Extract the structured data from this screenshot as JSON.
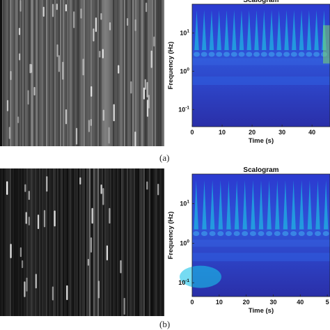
{
  "captions": {
    "a": "(a)",
    "b": "(b)"
  },
  "colors": {
    "scalogram_bg": "#2b33b0",
    "scalogram_mid": "#2f5fe0",
    "scalogram_hot": "#1ad7e8"
  },
  "chart_data": [
    {
      "type": "heatmap",
      "panel": "(a) left",
      "description_level": "grayscale vertical streak image",
      "colormap": "gray"
    },
    {
      "type": "heatmap",
      "panel": "(a) right",
      "title": "Scalogram",
      "xlabel": "Time (s)",
      "ylabel": "Frequency (Hz)",
      "x_ticks": [
        "0",
        "10",
        "20",
        "30",
        "40"
      ],
      "y_ticks": [
        "10",
        "10",
        "10"
      ],
      "y_tick_exponents": [
        "1",
        "0",
        "-1"
      ],
      "x_range": [
        0,
        46
      ],
      "y_scale": "log",
      "colormap": "parula",
      "burst_times": [
        1.5,
        4,
        6.5,
        9,
        11.5,
        14,
        16.5,
        19,
        21.5,
        24,
        26.5,
        29,
        31.5,
        34,
        36.5,
        39,
        41.5,
        44
      ]
    },
    {
      "type": "heatmap",
      "panel": "(b) left",
      "colormap": "gray"
    },
    {
      "type": "heatmap",
      "panel": "(b) right",
      "title": "Scalogram",
      "xlabel": "Time (s)",
      "ylabel": "Frequency (Hz)",
      "x_ticks": [
        "0",
        "10",
        "20",
        "30",
        "40",
        "5"
      ],
      "y_ticks": [
        "10",
        "10",
        "10"
      ],
      "y_tick_exponents": [
        "1",
        "0",
        "-1"
      ],
      "x_range": [
        0,
        51
      ],
      "y_scale": "log",
      "colormap": "parula",
      "burst_times": [
        1.5,
        4.5,
        7.5,
        10.5,
        13.5,
        16.5,
        19.5,
        22.5,
        25.5,
        28.5,
        31.5,
        34.5,
        37.5,
        40.5,
        43.5,
        46.5,
        49.5
      ]
    }
  ]
}
